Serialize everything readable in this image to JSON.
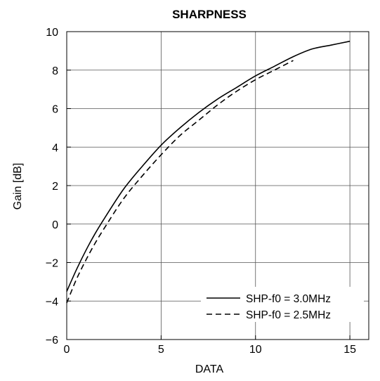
{
  "chart_data": {
    "type": "line",
    "title": "SHARPNESS",
    "xlabel": "DATA",
    "ylabel": "Gain [dB]",
    "xlim": [
      0,
      16
    ],
    "ylim": [
      -6,
      10
    ],
    "x_ticks": [
      0,
      5,
      10,
      15
    ],
    "x_tick_labels": [
      "0",
      "5",
      "10",
      "15"
    ],
    "y_ticks": [
      -6,
      -4,
      -2,
      0,
      2,
      4,
      6,
      8,
      10
    ],
    "y_tick_labels": [
      "−6",
      "−4",
      "−2",
      "0",
      "2",
      "4",
      "6",
      "8",
      "10"
    ],
    "grid": true,
    "legend_position": "bottom-right",
    "series": [
      {
        "name": "SHP-f0 = 3.0MHz",
        "line_style": "solid",
        "x": [
          0,
          0.5,
          1,
          1.5,
          2,
          3,
          4,
          5,
          6,
          7,
          8,
          9,
          10,
          11,
          12,
          13,
          14,
          15
        ],
        "y": [
          -3.5,
          -2.4,
          -1.4,
          -0.5,
          0.3,
          1.8,
          3.0,
          4.1,
          5.0,
          5.8,
          6.5,
          7.1,
          7.7,
          8.2,
          8.7,
          9.1,
          9.3,
          9.5
        ]
      },
      {
        "name": "SHP-f0 = 2.5MHz",
        "line_style": "dashed",
        "x": [
          0,
          0.5,
          1,
          1.5,
          2,
          3,
          4,
          5,
          6,
          7,
          8,
          9,
          10,
          11,
          12
        ],
        "y": [
          -4.1,
          -2.9,
          -1.9,
          -1.0,
          -0.2,
          1.3,
          2.5,
          3.6,
          4.6,
          5.4,
          6.2,
          6.9,
          7.5,
          8.0,
          8.5
        ]
      }
    ]
  }
}
